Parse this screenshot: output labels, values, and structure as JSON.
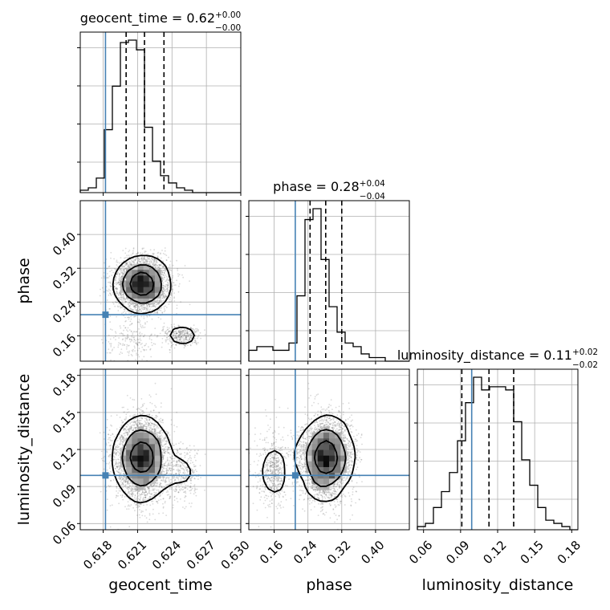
{
  "chart_data": {
    "type": "corner",
    "parameters": [
      "geocent_time",
      "phase",
      "luminosity_distance"
    ],
    "truth": {
      "geocent_time": 0.6182,
      "phase": 0.21,
      "luminosity_distance": 0.099
    },
    "truth_color": "#4682b4",
    "titles": [
      {
        "param": "geocent_time",
        "label": "geocent_time = 0.62",
        "sup": "+0.00",
        "sub": "−0.00"
      },
      {
        "param": "phase",
        "label": "phase = 0.28",
        "sup": "+0.04",
        "sub": "−0.04"
      },
      {
        "param": "luminosity_distance",
        "label": "luminosity_distance = 0.11",
        "sup": "+0.02",
        "sub": "−0.02"
      }
    ],
    "axis_labels": {
      "geocent_time": "geocent_time",
      "phase": "phase",
      "luminosity_distance": "luminosity_distance"
    },
    "ranges": {
      "geocent_time": [
        0.616,
        0.63
      ],
      "phase": [
        0.1,
        0.48
      ],
      "luminosity_distance": [
        0.055,
        0.185
      ]
    },
    "ticks": {
      "geocent_time": [
        0.618,
        0.621,
        0.624,
        0.627,
        0.63
      ],
      "phase": [
        0.16,
        0.24,
        0.32,
        0.4
      ],
      "luminosity_distance": [
        0.06,
        0.09,
        0.12,
        0.15,
        0.18
      ]
    },
    "tick_labels": {
      "geocent_time": [
        "0.618",
        "0.621",
        "0.624",
        "0.627",
        "0.630"
      ],
      "phase": [
        "0.16",
        "0.24",
        "0.32",
        "0.40"
      ],
      "luminosity_distance": [
        "0.06",
        "0.09",
        "0.12",
        "0.15",
        "0.18"
      ]
    },
    "quantiles": {
      "geocent_time": [
        0.62,
        0.6216,
        0.6233
      ],
      "phase": [
        0.245,
        0.282,
        0.32
      ],
      "luminosity_distance": [
        0.091,
        0.113,
        0.133
      ]
    },
    "hist_1d": {
      "geocent_time": {
        "edges_start": 0.616,
        "bin_width": 0.0007,
        "counts": [
          1,
          2,
          6,
          26,
          44,
          62,
          63,
          59,
          27,
          13,
          7,
          4,
          2,
          1,
          0,
          0,
          0,
          0,
          0,
          0
        ]
      },
      "phase": {
        "edges_start": 0.1,
        "bin_width": 0.019,
        "counts": [
          3,
          4,
          4,
          3,
          3,
          5,
          18,
          39,
          42,
          28,
          15,
          8,
          5,
          4,
          2,
          1,
          1,
          0,
          0,
          0
        ]
      },
      "luminosity_distance": {
        "edges_start": 0.055,
        "bin_width": 0.0065,
        "counts": [
          1,
          2,
          7,
          12,
          18,
          28,
          40,
          48,
          44,
          45,
          45,
          44,
          34,
          22,
          14,
          7,
          3,
          2,
          1,
          0
        ]
      }
    },
    "grid": true,
    "contour_levels": 3,
    "show_datapoints": true,
    "density_colormap": "gray"
  }
}
